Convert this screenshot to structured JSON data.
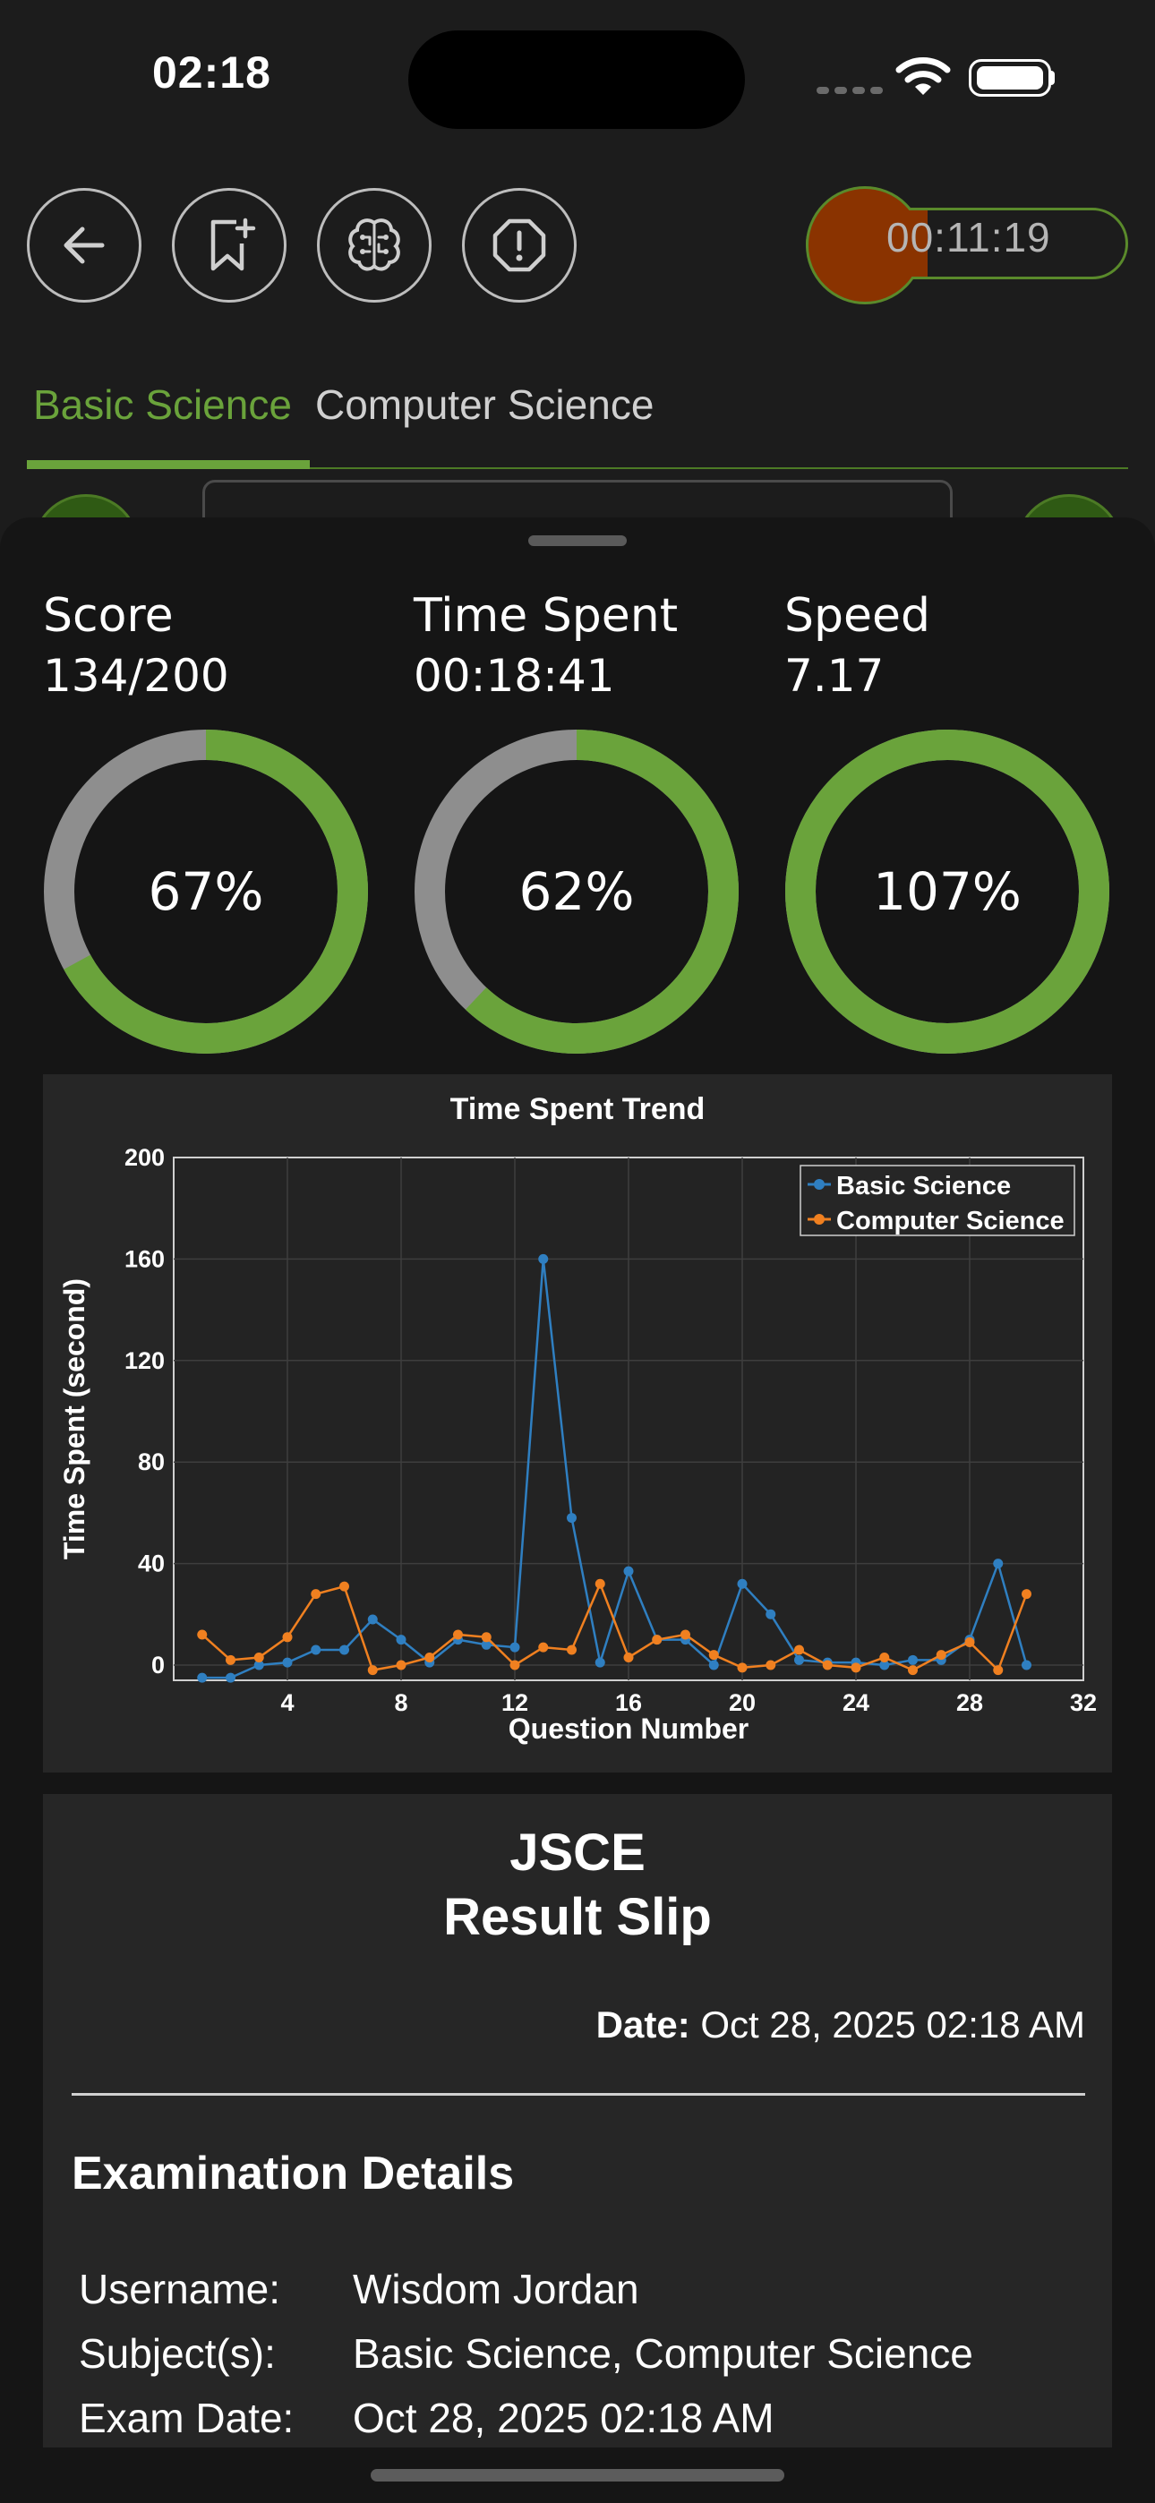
{
  "status_bar": {
    "time": "02:18"
  },
  "toolbar": {
    "timer": "00:11:19"
  },
  "tabs": [
    {
      "label": "Basic Science",
      "active": true
    },
    {
      "label": "Computer Science",
      "active": false
    }
  ],
  "stats": [
    {
      "label": "Score",
      "value": "134/200",
      "percent_label": "67%",
      "percent": 67
    },
    {
      "label": "Time Spent",
      "value": "00:18:41",
      "percent_label": "62%",
      "percent": 62
    },
    {
      "label": "Speed",
      "value": "7.17",
      "percent_label": "107%",
      "percent": 107
    }
  ],
  "colors": {
    "accent_green": "#6aa33b",
    "ring_gray": "#8e8e8e",
    "timer_orange": "#8a3300",
    "series_blue": "#2f7fc1",
    "series_orange": "#f08020"
  },
  "chart_data": {
    "type": "line",
    "title": "Time Spent Trend",
    "xlabel": "Question Number",
    "ylabel": "Time Spent (second)",
    "xlim": [
      0,
      32
    ],
    "ylim": [
      -6,
      200
    ],
    "xticks": [
      4,
      8,
      12,
      16,
      20,
      24,
      28,
      32
    ],
    "yticks": [
      0,
      40,
      80,
      120,
      160,
      200
    ],
    "grid": true,
    "legend_position": "top-right",
    "x": [
      1,
      2,
      3,
      4,
      5,
      6,
      7,
      8,
      9,
      10,
      11,
      12,
      13,
      14,
      15,
      16,
      17,
      18,
      19,
      20,
      21,
      22,
      23,
      24,
      25,
      26,
      27,
      28,
      29,
      30
    ],
    "series": [
      {
        "name": "Basic Science",
        "color": "#2f7fc1",
        "values": [
          -5,
          -5,
          0,
          1,
          6,
          6,
          18,
          10,
          1,
          10,
          8,
          7,
          160,
          58,
          1,
          37,
          10,
          10,
          0,
          32,
          20,
          2,
          1,
          1,
          0,
          2,
          2,
          10,
          40,
          0
        ]
      },
      {
        "name": "Computer Science",
        "color": "#f08020",
        "values": [
          12,
          2,
          3,
          11,
          28,
          31,
          -2,
          0,
          3,
          12,
          11,
          0,
          7,
          6,
          32,
          3,
          10,
          12,
          4,
          -1,
          0,
          6,
          0,
          -1,
          3,
          -2,
          4,
          9,
          -2,
          28
        ]
      }
    ]
  },
  "slip": {
    "title_line1": "JSCE",
    "title_line2": "Result Slip",
    "date_label": "Date:",
    "date_value": "Oct 28, 2025 02:18 AM",
    "section_title": "Examination Details",
    "details": [
      {
        "label": "Username:",
        "value": "Wisdom Jordan"
      },
      {
        "label": "Subject(s):",
        "value": "Basic Science, Computer Science"
      },
      {
        "label": "Exam Date:",
        "value": "Oct 28, 2025 02:18 AM"
      }
    ]
  }
}
